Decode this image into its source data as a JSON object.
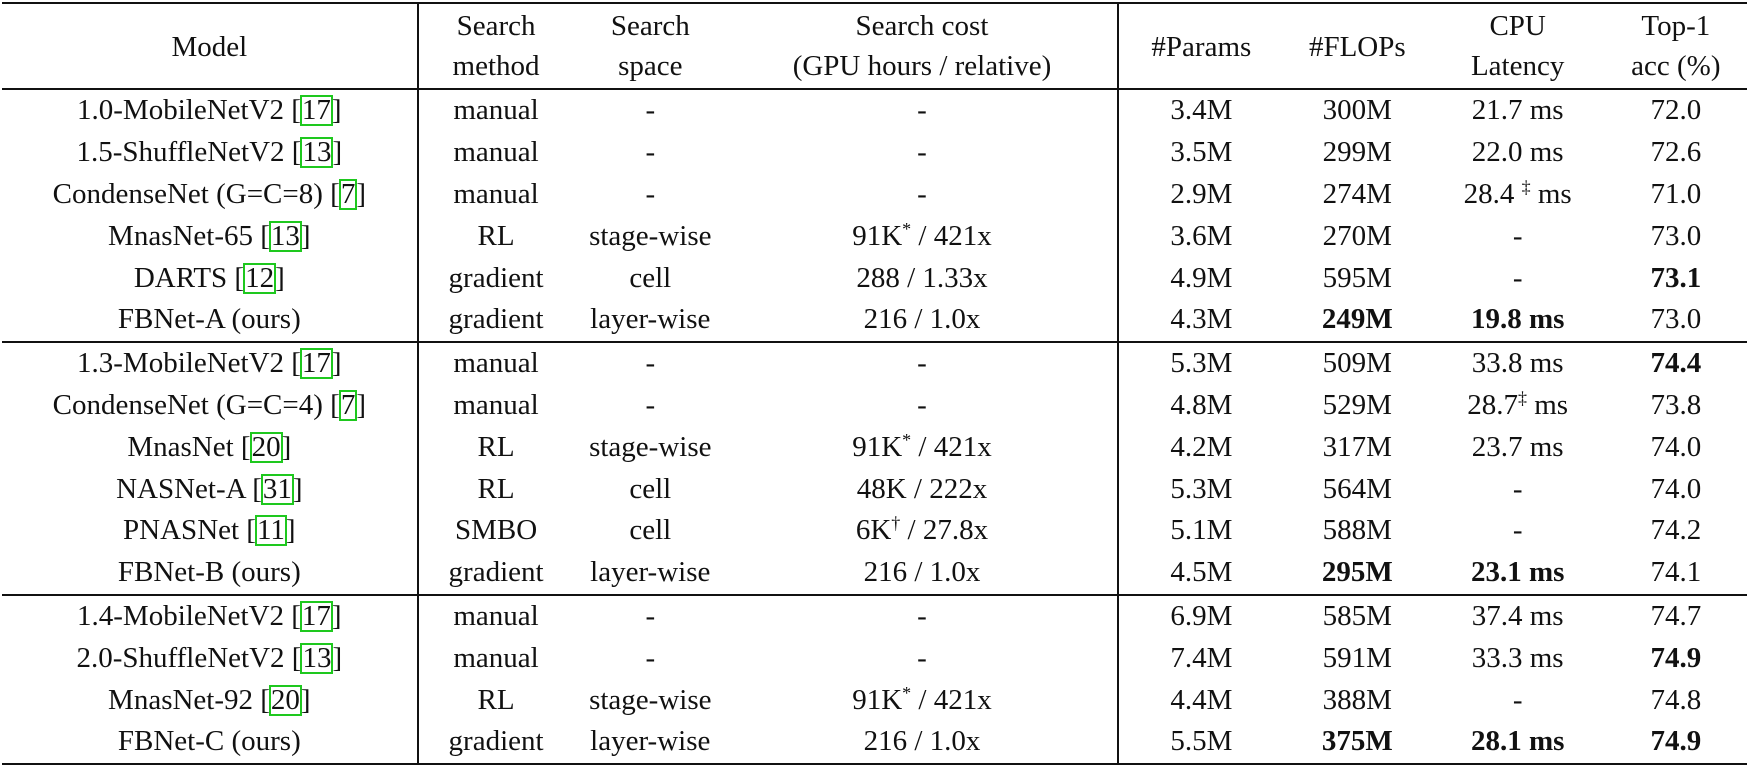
{
  "headers": {
    "model": "Model",
    "search_method": [
      "Search",
      "method"
    ],
    "search_space": [
      "Search",
      "space"
    ],
    "search_cost": [
      "Search cost",
      "(GPU hours / relative)"
    ],
    "params": "#Params",
    "flops": "#FLOPs",
    "cpu_latency": [
      "CPU",
      "Latency"
    ],
    "top1": [
      "Top-1",
      "acc (%)"
    ]
  },
  "rows": [
    {
      "name": "1.0-MobileNetV2 [",
      "cite": "17",
      "tail": "]",
      "method": "manual",
      "space": "-",
      "cost": "-",
      "cost_sup": "",
      "cost_rel": "",
      "params": "3.4M",
      "flops": "300M",
      "latency": "21.7 ms",
      "lat_sup": "",
      "lat_unit": "",
      "acc": "72.0",
      "bold": []
    },
    {
      "name": "1.5-ShuffleNetV2 [",
      "cite": "13",
      "tail": "]",
      "method": "manual",
      "space": "-",
      "cost": "-",
      "cost_sup": "",
      "cost_rel": "",
      "params": "3.5M",
      "flops": "299M",
      "latency": "22.0 ms",
      "lat_sup": "",
      "lat_unit": "",
      "acc": "72.6",
      "bold": []
    },
    {
      "name": "CondenseNet (G=C=8) [",
      "cite": "7",
      "tail": "]",
      "method": "manual",
      "space": "-",
      "cost": "-",
      "cost_sup": "",
      "cost_rel": "",
      "params": "2.9M",
      "flops": "274M",
      "latency": "28.4 ",
      "lat_sup": "‡",
      "lat_unit": " ms",
      "acc": "71.0",
      "bold": []
    },
    {
      "name": "MnasNet-65 [",
      "cite": "13",
      "tail": "]",
      "method": "RL",
      "space": "stage-wise",
      "cost": "91K",
      "cost_sup": "*",
      "cost_rel": " / 421x",
      "params": "3.6M",
      "flops": "270M",
      "latency": "-",
      "lat_sup": "",
      "lat_unit": "",
      "acc": "73.0",
      "bold": []
    },
    {
      "name": "DARTS [",
      "cite": "12",
      "tail": "]",
      "method": "gradient",
      "space": "cell",
      "cost": "288 / 1.33x",
      "cost_sup": "",
      "cost_rel": "",
      "params": "4.9M",
      "flops": "595M",
      "latency": "-",
      "lat_sup": "",
      "lat_unit": "",
      "acc": "73.1",
      "bold": [
        "acc"
      ]
    },
    {
      "name": "FBNet-A (ours)",
      "cite": "",
      "tail": "",
      "method": "gradient",
      "space": "layer-wise",
      "cost": "216 / 1.0x",
      "cost_sup": "",
      "cost_rel": "",
      "params": "4.3M",
      "flops": "249M",
      "latency": "19.8 ms",
      "lat_sup": "",
      "lat_unit": "",
      "acc": "73.0",
      "bold": [
        "flops",
        "latency"
      ],
      "group_end": true
    },
    {
      "name": "1.3-MobileNetV2 [",
      "cite": "17",
      "tail": "]",
      "method": "manual",
      "space": "-",
      "cost": "-",
      "cost_sup": "",
      "cost_rel": "",
      "params": "5.3M",
      "flops": "509M",
      "latency": "33.8 ms",
      "lat_sup": "",
      "lat_unit": "",
      "acc": "74.4",
      "bold": [
        "acc"
      ]
    },
    {
      "name": "CondenseNet (G=C=4) [",
      "cite": "7",
      "tail": "]",
      "method": "manual",
      "space": "-",
      "cost": "-",
      "cost_sup": "",
      "cost_rel": "",
      "params": "4.8M",
      "flops": "529M",
      "latency": "28.7",
      "lat_sup": "‡",
      "lat_unit": " ms",
      "acc": "73.8",
      "bold": []
    },
    {
      "name": "MnasNet [",
      "cite": "20",
      "tail": "]",
      "method": "RL",
      "space": "stage-wise",
      "cost": "91K",
      "cost_sup": "*",
      "cost_rel": " / 421x",
      "params": "4.2M",
      "flops": "317M",
      "latency": "23.7 ms",
      "lat_sup": "",
      "lat_unit": "",
      "acc": "74.0",
      "bold": []
    },
    {
      "name": "NASNet-A [",
      "cite": "31",
      "tail": "]",
      "method": "RL",
      "space": "cell",
      "cost": "48K / 222x",
      "cost_sup": "",
      "cost_rel": "",
      "params": "5.3M",
      "flops": "564M",
      "latency": "-",
      "lat_sup": "",
      "lat_unit": "",
      "acc": "74.0",
      "bold": []
    },
    {
      "name": "PNASNet [",
      "cite": "11",
      "tail": "]",
      "method": "SMBO",
      "space": "cell",
      "cost": "6K",
      "cost_sup": "†",
      "cost_rel": " / 27.8x",
      "params": "5.1M",
      "flops": "588M",
      "latency": "-",
      "lat_sup": "",
      "lat_unit": "",
      "acc": "74.2",
      "bold": []
    },
    {
      "name": "FBNet-B (ours)",
      "cite": "",
      "tail": "",
      "method": "gradient",
      "space": "layer-wise",
      "cost": "216 / 1.0x",
      "cost_sup": "",
      "cost_rel": "",
      "params": "4.5M",
      "flops": "295M",
      "latency": "23.1 ms",
      "lat_sup": "",
      "lat_unit": "",
      "acc": "74.1",
      "bold": [
        "flops",
        "latency"
      ],
      "group_end": true
    },
    {
      "name": "1.4-MobileNetV2 [",
      "cite": "17",
      "tail": "]",
      "method": "manual",
      "space": "-",
      "cost": "-",
      "cost_sup": "",
      "cost_rel": "",
      "params": "6.9M",
      "flops": "585M",
      "latency": "37.4 ms",
      "lat_sup": "",
      "lat_unit": "",
      "acc": "74.7",
      "bold": []
    },
    {
      "name": "2.0-ShuffleNetV2 [",
      "cite": "13",
      "tail": "]",
      "method": "manual",
      "space": "-",
      "cost": "-",
      "cost_sup": "",
      "cost_rel": "",
      "params": "7.4M",
      "flops": "591M",
      "latency": "33.3 ms",
      "lat_sup": "",
      "lat_unit": "",
      "acc": "74.9",
      "bold": [
        "acc"
      ]
    },
    {
      "name": "MnasNet-92 [",
      "cite": "20",
      "tail": "]",
      "method": "RL",
      "space": "stage-wise",
      "cost": "91K",
      "cost_sup": "*",
      "cost_rel": " / 421x",
      "params": "4.4M",
      "flops": "388M",
      "latency": "-",
      "lat_sup": "",
      "lat_unit": "",
      "acc": "74.8",
      "bold": []
    },
    {
      "name": "FBNet-C (ours)",
      "cite": "",
      "tail": "",
      "method": "gradient",
      "space": "layer-wise",
      "cost": "216 / 1.0x",
      "cost_sup": "",
      "cost_rel": "",
      "params": "5.5M",
      "flops": "375M",
      "latency": "28.1 ms",
      "lat_sup": "",
      "lat_unit": "",
      "acc": "74.9",
      "bold": [
        "flops",
        "latency",
        "acc"
      ],
      "group_end": true
    }
  ]
}
